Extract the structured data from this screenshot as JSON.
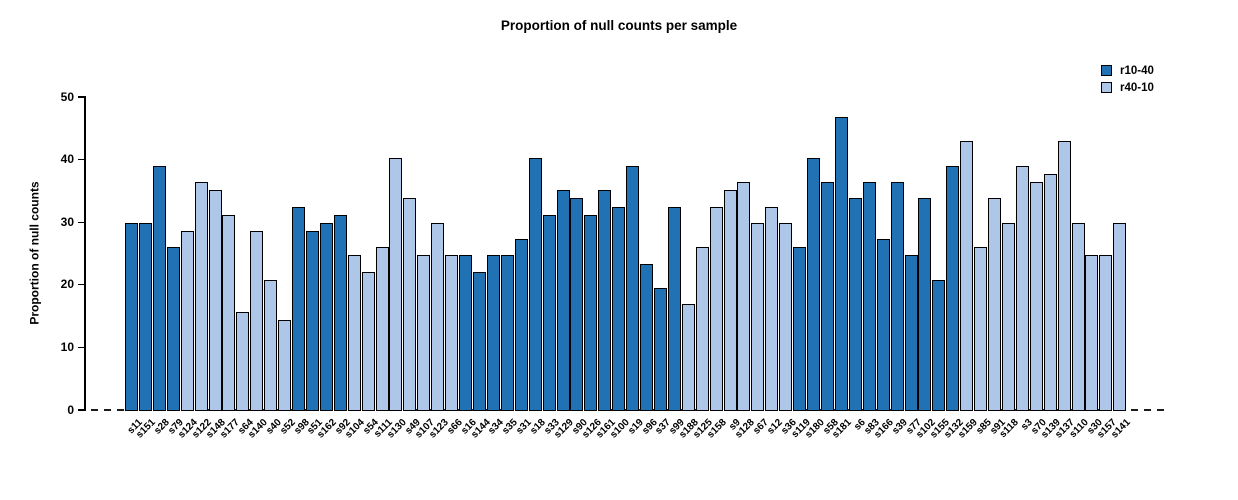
{
  "title": "Proportion of null counts per sample",
  "legend": {
    "items": [
      {
        "label": "r10-40",
        "color": "#2171b5"
      },
      {
        "label": "r40-10",
        "color": "#aec6e8"
      }
    ]
  },
  "chart_data": {
    "type": "bar",
    "title": "Proportion of null counts per sample",
    "xlabel": "",
    "ylabel": "Proportion of null counts",
    "ylim": [
      0,
      50
    ],
    "yticks": [
      0,
      10,
      20,
      30,
      40,
      50
    ],
    "grid": false,
    "legend_position": "top-right",
    "baseline_style": "dashed",
    "series_key": {
      "r10-40": "#2171b5",
      "r40-10": "#aec6e8"
    },
    "bars": [
      {
        "label": "s11",
        "value": 29.9,
        "group": "r10-40"
      },
      {
        "label": "s151",
        "value": 29.9,
        "group": "r10-40"
      },
      {
        "label": "s28",
        "value": 39.0,
        "group": "r10-40"
      },
      {
        "label": "s79",
        "value": 26.0,
        "group": "r10-40"
      },
      {
        "label": "s124",
        "value": 28.6,
        "group": "r40-10"
      },
      {
        "label": "s122",
        "value": 36.4,
        "group": "r40-10"
      },
      {
        "label": "s148",
        "value": 35.1,
        "group": "r40-10"
      },
      {
        "label": "s177",
        "value": 31.2,
        "group": "r40-10"
      },
      {
        "label": "s64",
        "value": 15.6,
        "group": "r40-10"
      },
      {
        "label": "s140",
        "value": 28.6,
        "group": "r40-10"
      },
      {
        "label": "s40",
        "value": 20.8,
        "group": "r40-10"
      },
      {
        "label": "s52",
        "value": 14.3,
        "group": "r40-10"
      },
      {
        "label": "s98",
        "value": 32.5,
        "group": "r10-40"
      },
      {
        "label": "s51",
        "value": 28.6,
        "group": "r10-40"
      },
      {
        "label": "s162",
        "value": 29.9,
        "group": "r10-40"
      },
      {
        "label": "s92",
        "value": 31.2,
        "group": "r10-40"
      },
      {
        "label": "s104",
        "value": 24.7,
        "group": "r40-10"
      },
      {
        "label": "s54",
        "value": 22.1,
        "group": "r40-10"
      },
      {
        "label": "s111",
        "value": 26.0,
        "group": "r40-10"
      },
      {
        "label": "s130",
        "value": 40.3,
        "group": "r40-10"
      },
      {
        "label": "s49",
        "value": 33.8,
        "group": "r40-10"
      },
      {
        "label": "s107",
        "value": 24.7,
        "group": "r40-10"
      },
      {
        "label": "s123",
        "value": 29.9,
        "group": "r40-10"
      },
      {
        "label": "s66",
        "value": 24.7,
        "group": "r40-10"
      },
      {
        "label": "s16",
        "value": 24.7,
        "group": "r10-40"
      },
      {
        "label": "s144",
        "value": 22.1,
        "group": "r10-40"
      },
      {
        "label": "s34",
        "value": 24.7,
        "group": "r10-40"
      },
      {
        "label": "s35",
        "value": 24.7,
        "group": "r10-40"
      },
      {
        "label": "s31",
        "value": 27.3,
        "group": "r10-40"
      },
      {
        "label": "s18",
        "value": 40.3,
        "group": "r10-40"
      },
      {
        "label": "s33",
        "value": 31.2,
        "group": "r10-40"
      },
      {
        "label": "s129",
        "value": 35.1,
        "group": "r10-40"
      },
      {
        "label": "s90",
        "value": 33.8,
        "group": "r10-40"
      },
      {
        "label": "s126",
        "value": 31.2,
        "group": "r10-40"
      },
      {
        "label": "s161",
        "value": 35.1,
        "group": "r10-40"
      },
      {
        "label": "s100",
        "value": 32.5,
        "group": "r10-40"
      },
      {
        "label": "s19",
        "value": 39.0,
        "group": "r10-40"
      },
      {
        "label": "s96",
        "value": 23.4,
        "group": "r10-40"
      },
      {
        "label": "s37",
        "value": 19.5,
        "group": "r10-40"
      },
      {
        "label": "s99",
        "value": 32.5,
        "group": "r10-40"
      },
      {
        "label": "s188",
        "value": 16.9,
        "group": "r40-10"
      },
      {
        "label": "s125",
        "value": 26.0,
        "group": "r40-10"
      },
      {
        "label": "s158",
        "value": 32.5,
        "group": "r40-10"
      },
      {
        "label": "s9",
        "value": 35.1,
        "group": "r40-10"
      },
      {
        "label": "s128",
        "value": 36.4,
        "group": "r40-10"
      },
      {
        "label": "s67",
        "value": 29.9,
        "group": "r40-10"
      },
      {
        "label": "s12",
        "value": 32.5,
        "group": "r40-10"
      },
      {
        "label": "s36",
        "value": 29.9,
        "group": "r40-10"
      },
      {
        "label": "s119",
        "value": 26.0,
        "group": "r10-40"
      },
      {
        "label": "s180",
        "value": 40.3,
        "group": "r10-40"
      },
      {
        "label": "s58",
        "value": 36.4,
        "group": "r10-40"
      },
      {
        "label": "s181",
        "value": 46.8,
        "group": "r10-40"
      },
      {
        "label": "s6",
        "value": 33.8,
        "group": "r10-40"
      },
      {
        "label": "s83",
        "value": 36.4,
        "group": "r10-40"
      },
      {
        "label": "s166",
        "value": 27.3,
        "group": "r10-40"
      },
      {
        "label": "s39",
        "value": 36.4,
        "group": "r10-40"
      },
      {
        "label": "s77",
        "value": 24.7,
        "group": "r10-40"
      },
      {
        "label": "s102",
        "value": 33.8,
        "group": "r10-40"
      },
      {
        "label": "s155",
        "value": 20.8,
        "group": "r10-40"
      },
      {
        "label": "s132",
        "value": 39.0,
        "group": "r10-40"
      },
      {
        "label": "s159",
        "value": 42.9,
        "group": "r40-10"
      },
      {
        "label": "s85",
        "value": 26.0,
        "group": "r40-10"
      },
      {
        "label": "s91",
        "value": 33.8,
        "group": "r40-10"
      },
      {
        "label": "s118",
        "value": 29.9,
        "group": "r40-10"
      },
      {
        "label": "s3",
        "value": 39.0,
        "group": "r40-10"
      },
      {
        "label": "s70",
        "value": 36.4,
        "group": "r40-10"
      },
      {
        "label": "s139",
        "value": 37.7,
        "group": "r40-10"
      },
      {
        "label": "s137",
        "value": 42.9,
        "group": "r40-10"
      },
      {
        "label": "s110",
        "value": 29.9,
        "group": "r40-10"
      },
      {
        "label": "s30",
        "value": 24.7,
        "group": "r40-10"
      },
      {
        "label": "s157",
        "value": 24.7,
        "group": "r40-10"
      },
      {
        "label": "s141",
        "value": 29.9,
        "group": "r40-10"
      }
    ]
  }
}
